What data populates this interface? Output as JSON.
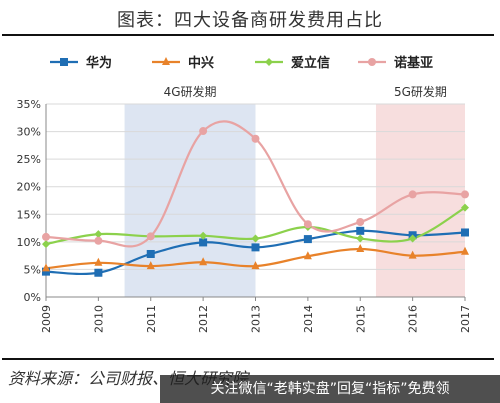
{
  "header": {
    "title": "图表：四大设备商研发费用占比"
  },
  "footer": {
    "source": "资料来源：公司财报、恒大研究院",
    "watermark": "关注微信“老韩实盘”回复“指标”免费领"
  },
  "chart_data": {
    "type": "line",
    "x": [
      "2009",
      "2010",
      "2011",
      "2012",
      "2013",
      "2014",
      "2015",
      "2016",
      "2017"
    ],
    "ylim": [
      0,
      35
    ],
    "yticks": [
      "0%",
      "5%",
      "10%",
      "15%",
      "20%",
      "25%",
      "30%",
      "35%"
    ],
    "legend_position": "top",
    "series": [
      {
        "name": "华为",
        "color": "#1f6eb4",
        "values": [
          4.6,
          4.4,
          7.8,
          9.9,
          9.0,
          10.5,
          12.0,
          11.2,
          11.7
        ],
        "marker": "square"
      },
      {
        "name": "中兴",
        "color": "#e8822a",
        "values": [
          5.2,
          6.2,
          5.6,
          6.3,
          5.6,
          7.4,
          8.7,
          7.5,
          8.2
        ],
        "marker": "triangle"
      },
      {
        "name": "爱立信",
        "color": "#8cd14c",
        "values": [
          9.6,
          11.4,
          11.0,
          11.1,
          10.6,
          12.7,
          10.6,
          10.6,
          16.2
        ],
        "marker": "diamond"
      },
      {
        "name": "诺基亚",
        "color": "#e8a3a3",
        "values": [
          10.9,
          10.2,
          11.0,
          30.1,
          28.7,
          13.2,
          13.6,
          18.6,
          18.6
        ],
        "marker": "circle"
      }
    ],
    "shaded_periods": [
      {
        "label": "4G研发期",
        "from": "2010.5",
        "to": "2013",
        "color": "#dde5f2"
      },
      {
        "label": "5G研发期",
        "from": "2015.3",
        "to": "2017",
        "color": "#f7dede"
      }
    ]
  }
}
